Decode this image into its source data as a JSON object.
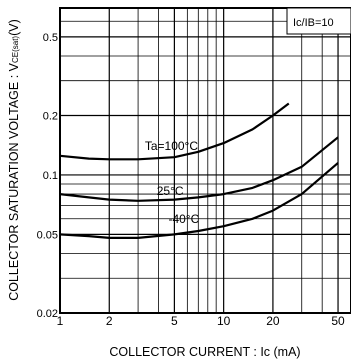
{
  "chart_data": {
    "type": "line",
    "title": "",
    "xlabel": "COLLECTOR CURRENT : Ic (mA)",
    "ylabel": "COLLECTOR SATURATION VOLTAGE : VCE(sat)(V)",
    "ylabel_main": "COLLECTOR SATURATION VOLTAGE : V",
    "ylabel_sub": "CE(sat)",
    "ylabel_unit": "(V)",
    "condition_label": "Ic/IB=10",
    "x_scale": "log",
    "y_scale": "log",
    "xlim": [
      1,
      60
    ],
    "ylim": [
      0.02,
      0.7
    ],
    "x_ticks": [
      1,
      2,
      5,
      10,
      20,
      50
    ],
    "x_tick_labels": [
      "1",
      "2",
      "5",
      "10",
      "20",
      "50"
    ],
    "y_ticks": [
      0.02,
      0.05,
      0.1,
      0.2,
      0.5
    ],
    "y_tick_labels": [
      "0.02",
      "0.05",
      "0.1",
      "0.2",
      "0.5"
    ],
    "grid": true,
    "series": [
      {
        "name": "Ta=100°C",
        "x": [
          1,
          1.5,
          2,
          3,
          5,
          7,
          10,
          15,
          20,
          25
        ],
        "y": [
          0.125,
          0.121,
          0.12,
          0.12,
          0.123,
          0.131,
          0.145,
          0.17,
          0.2,
          0.23
        ]
      },
      {
        "name": "25°C",
        "x": [
          1,
          1.5,
          2,
          3,
          5,
          7,
          10,
          15,
          20,
          30,
          50
        ],
        "y": [
          0.08,
          0.077,
          0.075,
          0.074,
          0.075,
          0.077,
          0.08,
          0.086,
          0.094,
          0.11,
          0.155
        ]
      },
      {
        "name": "-40°C",
        "x": [
          1,
          1.5,
          2,
          3,
          5,
          7,
          10,
          15,
          20,
          30,
          50
        ],
        "y": [
          0.05,
          0.049,
          0.048,
          0.048,
          0.05,
          0.052,
          0.055,
          0.06,
          0.066,
          0.08,
          0.115
        ]
      }
    ]
  }
}
